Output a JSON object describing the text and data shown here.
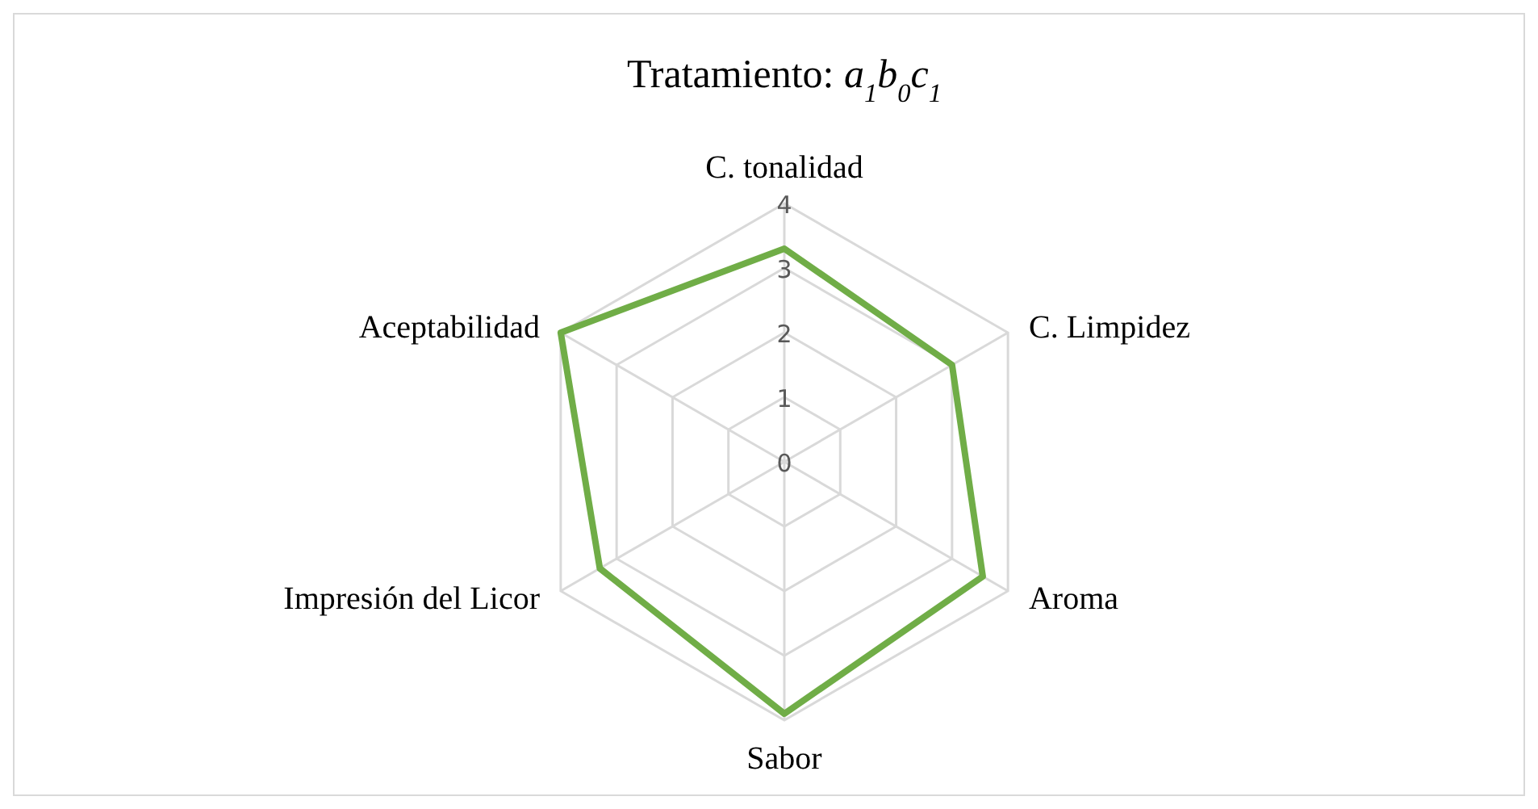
{
  "chart_data": {
    "type": "radar",
    "title": "Tratamiento: a$_{1}$b$_{0}$c$_{1}$",
    "categories": [
      "C. tonalidad",
      "C. Limpidez",
      "Aroma",
      "Sabor",
      "Impresión del Licor",
      "Aceptabilidad"
    ],
    "series": [
      {
        "color": "#70ad47",
        "values": [
          3.3,
          3.0,
          3.55,
          3.9,
          3.3,
          4.0
        ]
      }
    ],
    "ylim": [
      0,
      4
    ],
    "yticks": [
      0,
      1,
      2,
      3,
      4
    ],
    "grid": true,
    "legend": false
  }
}
